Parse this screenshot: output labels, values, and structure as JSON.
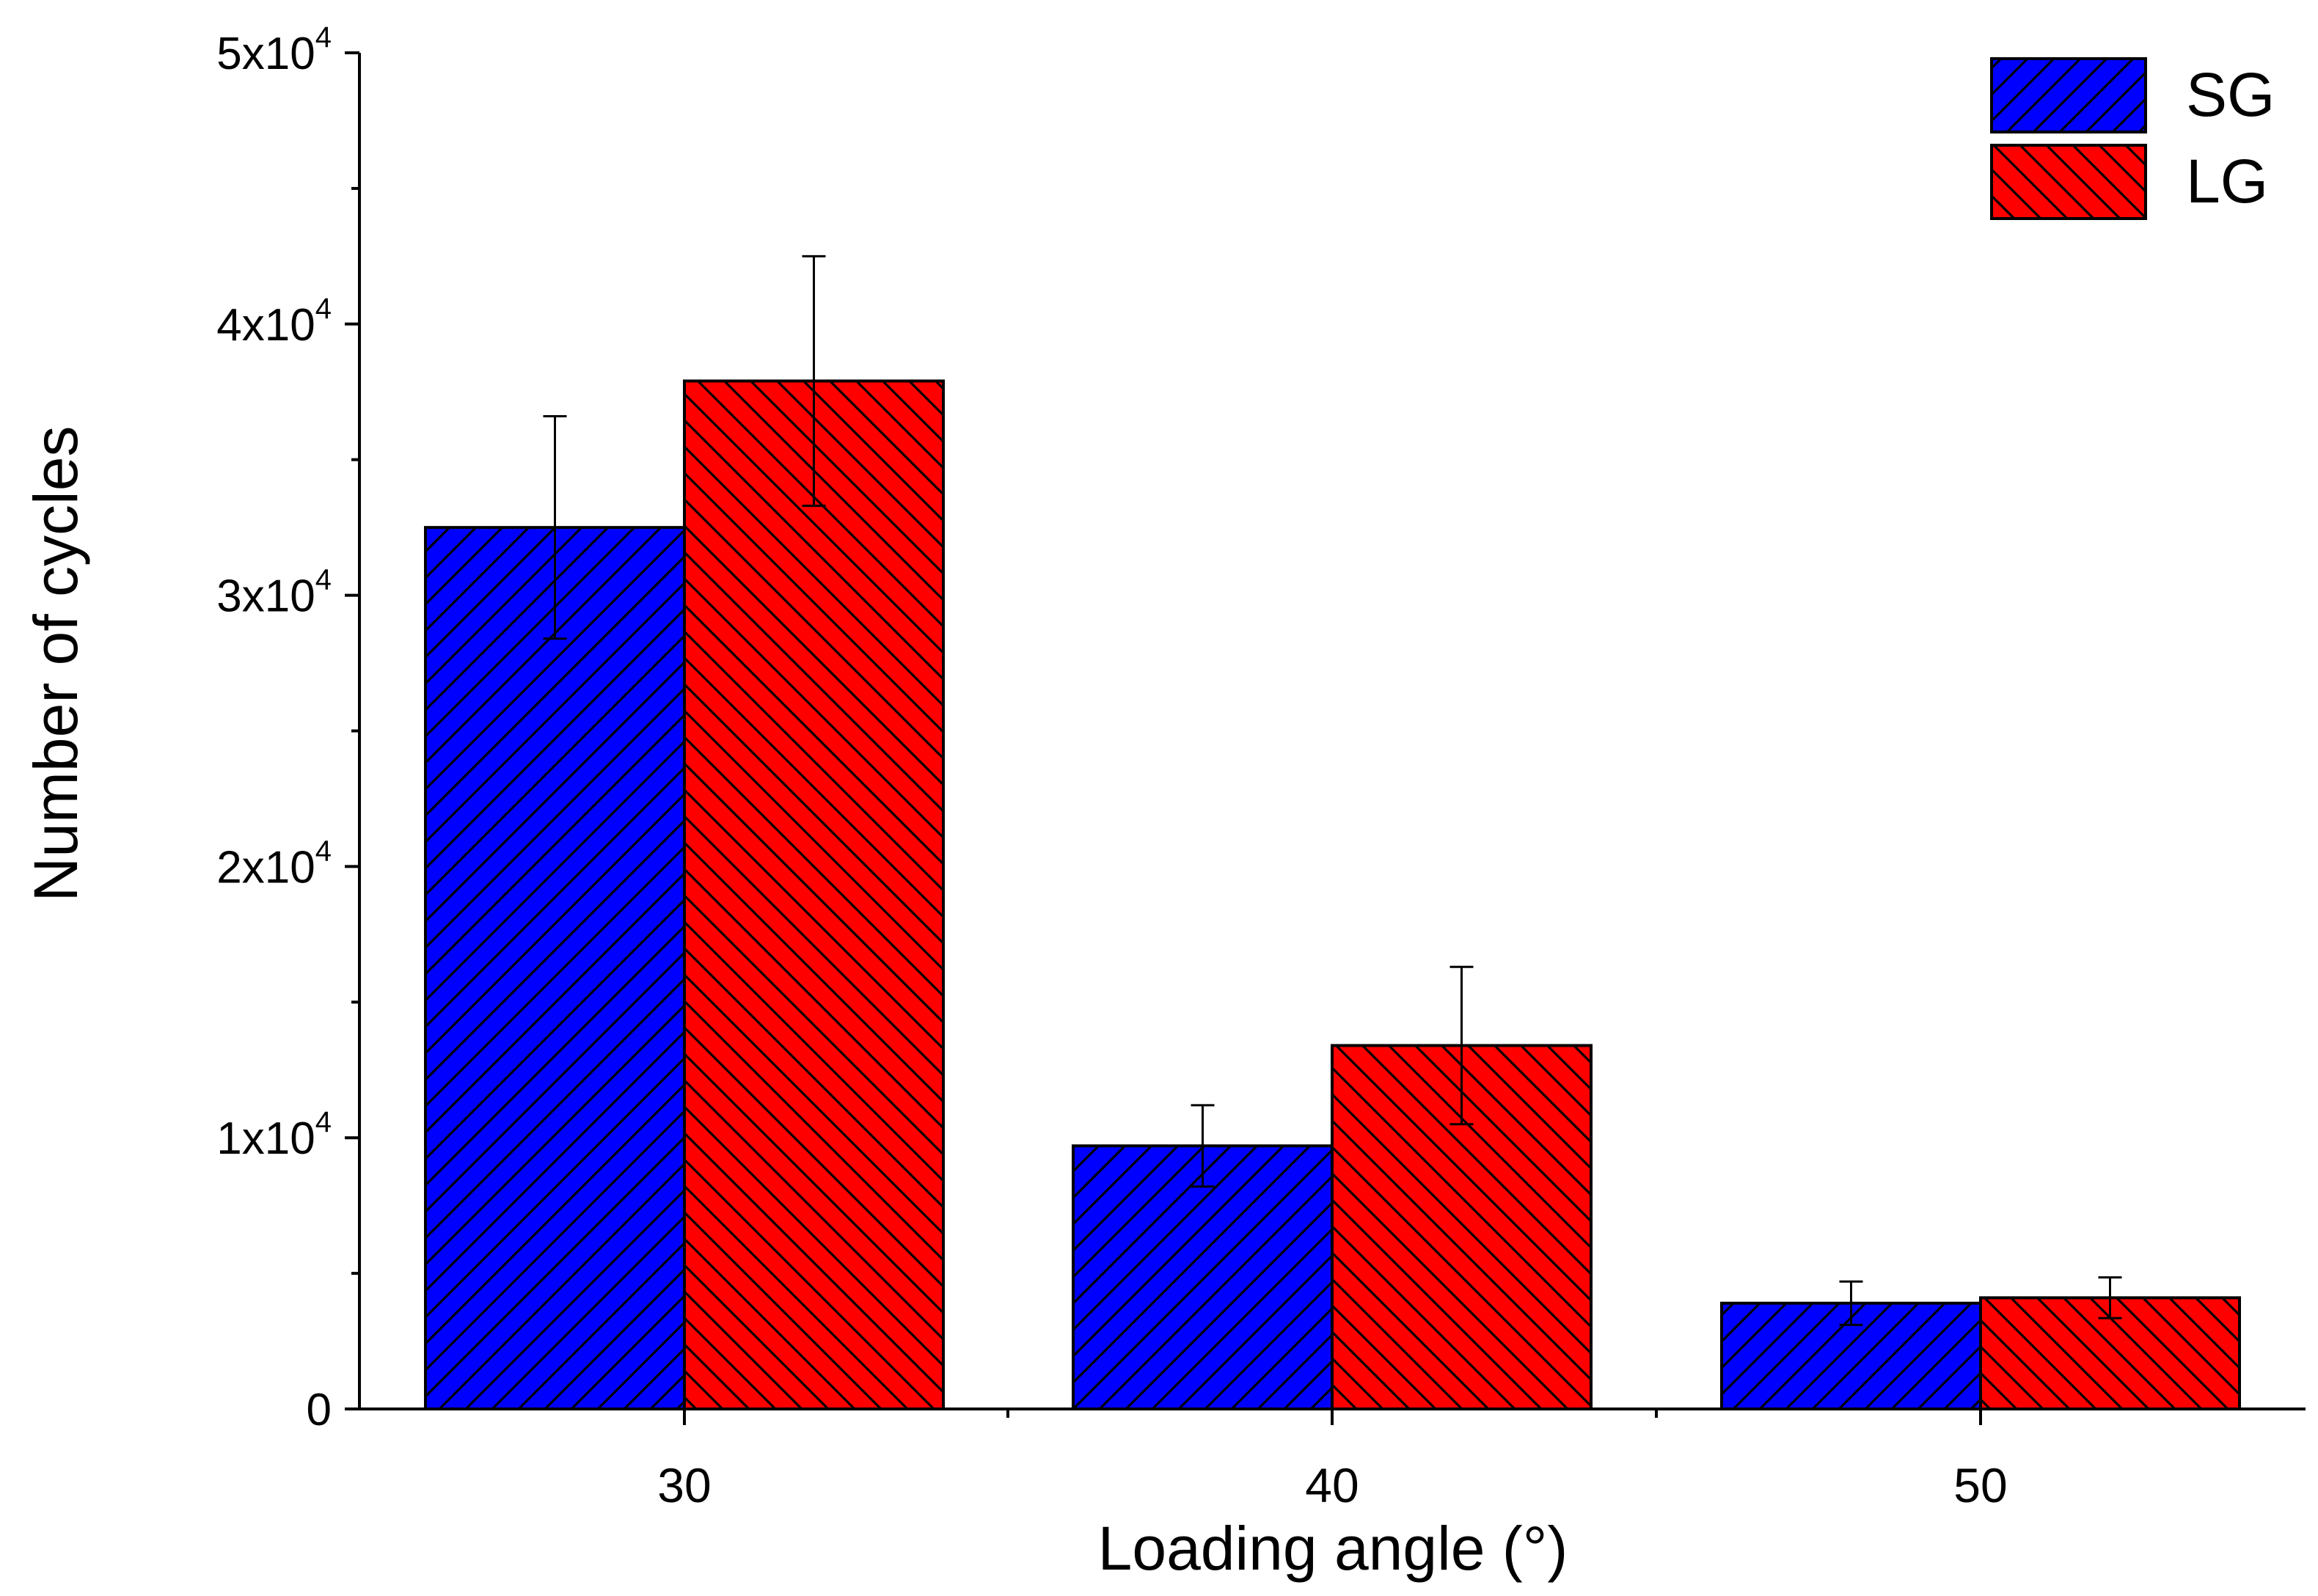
{
  "chart_data": {
    "type": "bar",
    "title": "",
    "xlabel": "Loading angle (°)",
    "ylabel": "Number of cycles",
    "categories": [
      "30",
      "40",
      "50"
    ],
    "ylim": [
      0,
      50000
    ],
    "yticks": [
      {
        "value": 0,
        "label": "0"
      },
      {
        "value": 10000,
        "label": "1x10",
        "sup": "4"
      },
      {
        "value": 20000,
        "label": "2x10",
        "sup": "4"
      },
      {
        "value": 30000,
        "label": "3x10",
        "sup": "4"
      },
      {
        "value": 40000,
        "label": "4x10",
        "sup": "4"
      },
      {
        "value": 50000,
        "label": "5x10",
        "sup": "4"
      }
    ],
    "series": [
      {
        "name": "SG",
        "color": "#0000ff",
        "hatch": "forward-diagonal",
        "values": [
          32500,
          9700,
          3900
        ],
        "errors": [
          4100,
          1500,
          800
        ]
      },
      {
        "name": "LG",
        "color": "#ff0000",
        "hatch": "backward-diagonal",
        "values": [
          37900,
          13400,
          4100
        ],
        "errors": [
          4600,
          2900,
          750
        ]
      }
    ],
    "legend_position": "top-right",
    "grid": false
  }
}
